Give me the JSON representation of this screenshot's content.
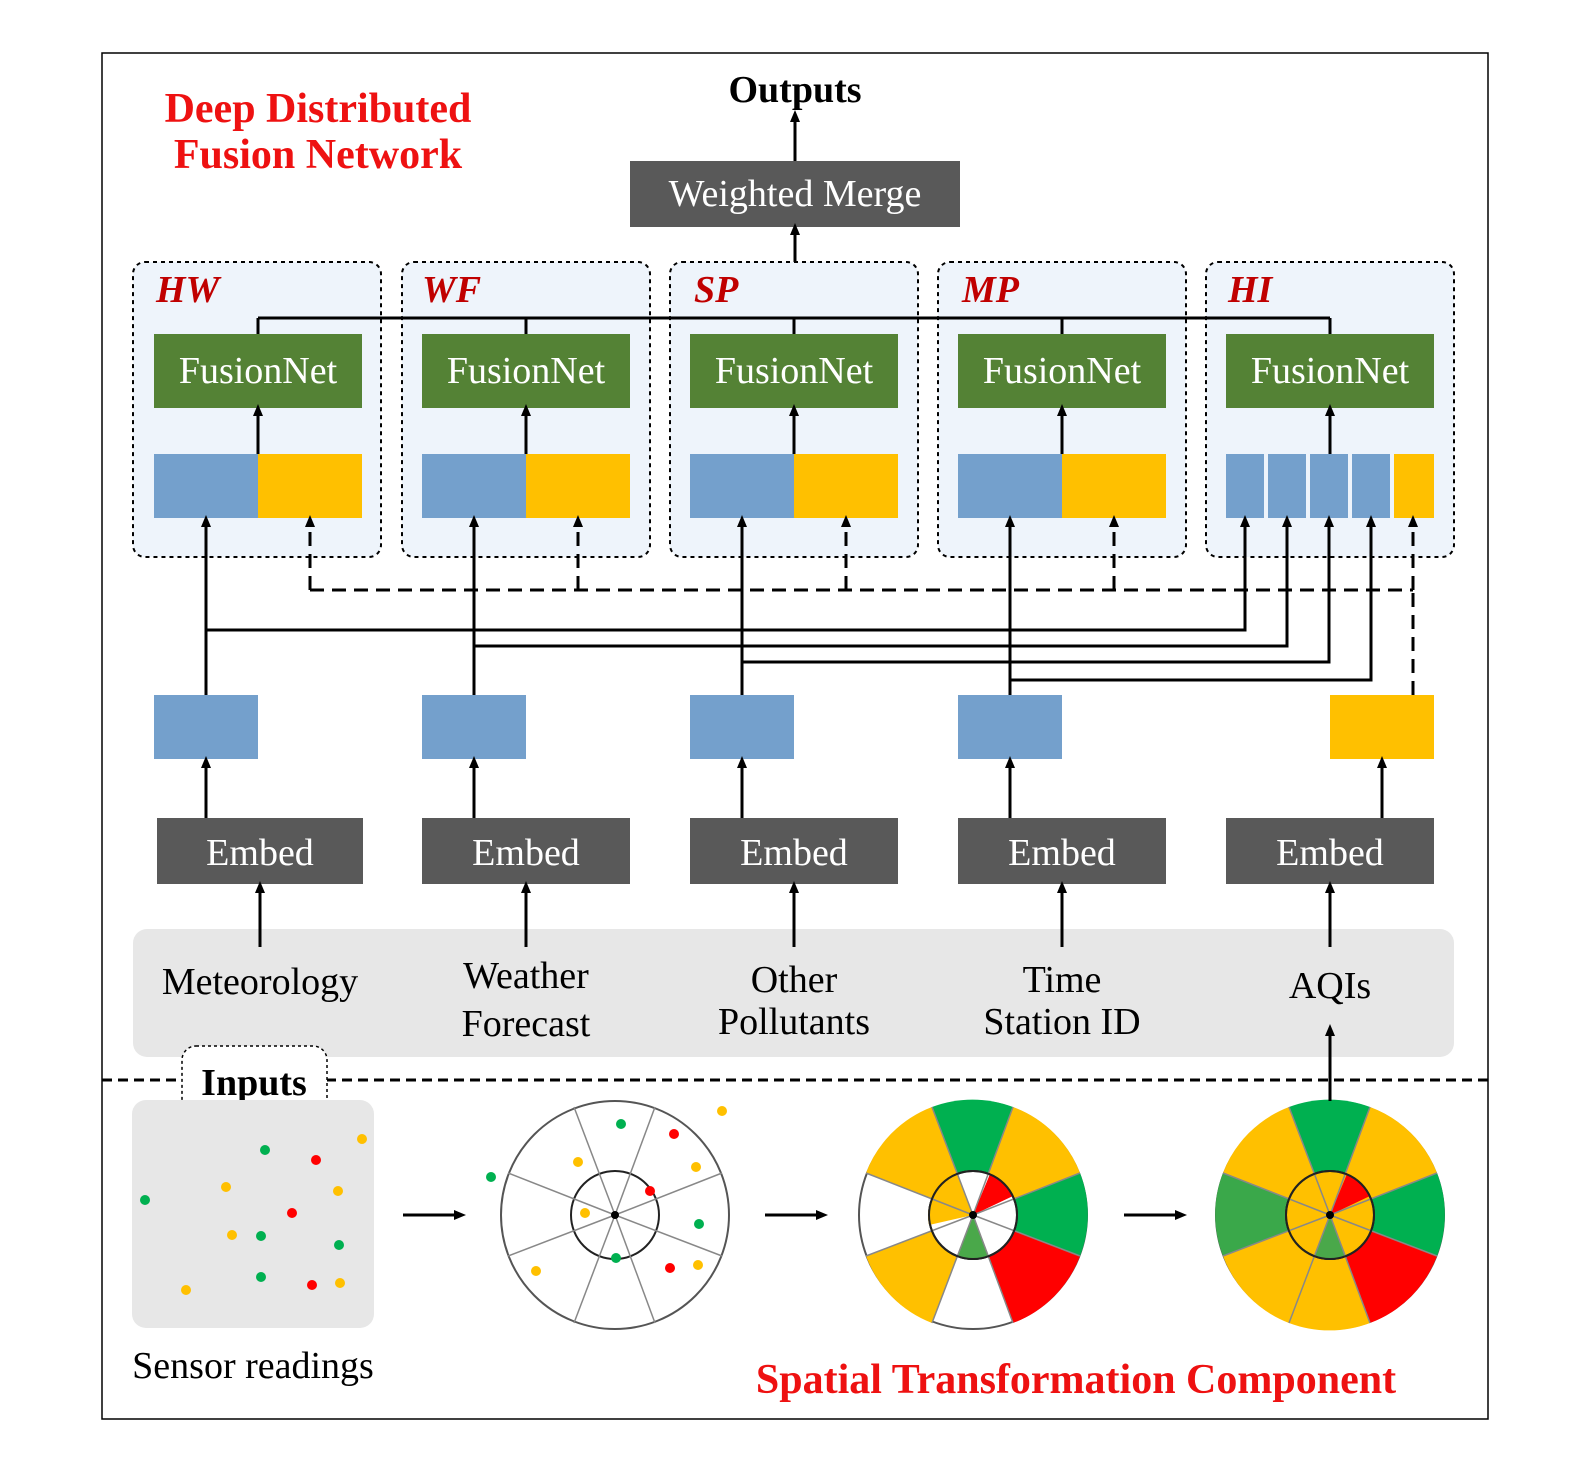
{
  "network_title": {
    "line1": "Deep Distributed",
    "line2": "Fusion Network"
  },
  "component_title": "Spatial Transformation Component",
  "outputs_label": "Outputs",
  "merge_label": "Weighted Merge",
  "branches": [
    {
      "tag": "HW",
      "net_label": "FusionNet"
    },
    {
      "tag": "WF",
      "net_label": "FusionNet"
    },
    {
      "tag": "SP",
      "net_label": "FusionNet"
    },
    {
      "tag": "MP",
      "net_label": "FusionNet"
    },
    {
      "tag": "HI",
      "net_label": "FusionNet"
    }
  ],
  "embed_label": "Embed",
  "inputs": [
    {
      "line1": "Meteorology",
      "line2": ""
    },
    {
      "line1": "Weather",
      "line2": "Forecast"
    },
    {
      "line1": "Other",
      "line2": "Pollutants"
    },
    {
      "line1": "Time",
      "line2": "Station ID"
    },
    {
      "line1": "AQIs",
      "line2": ""
    }
  ],
  "inputs_badge": "Inputs",
  "sensor_label": "Sensor readings",
  "colors": {
    "title_red": "#ee1111",
    "tag_red": "#c00000",
    "fusion_green": "#548235",
    "dark_box": "#595959",
    "blue_feature": "#74a0cc",
    "yellow_feature": "#ffc000",
    "panel_bg": "#eef4fb",
    "input_bg": "#e7e7e7",
    "sensor_green": "#00b050",
    "sensor_red": "#ff0000",
    "sensor_yellow": "#ffc000"
  }
}
